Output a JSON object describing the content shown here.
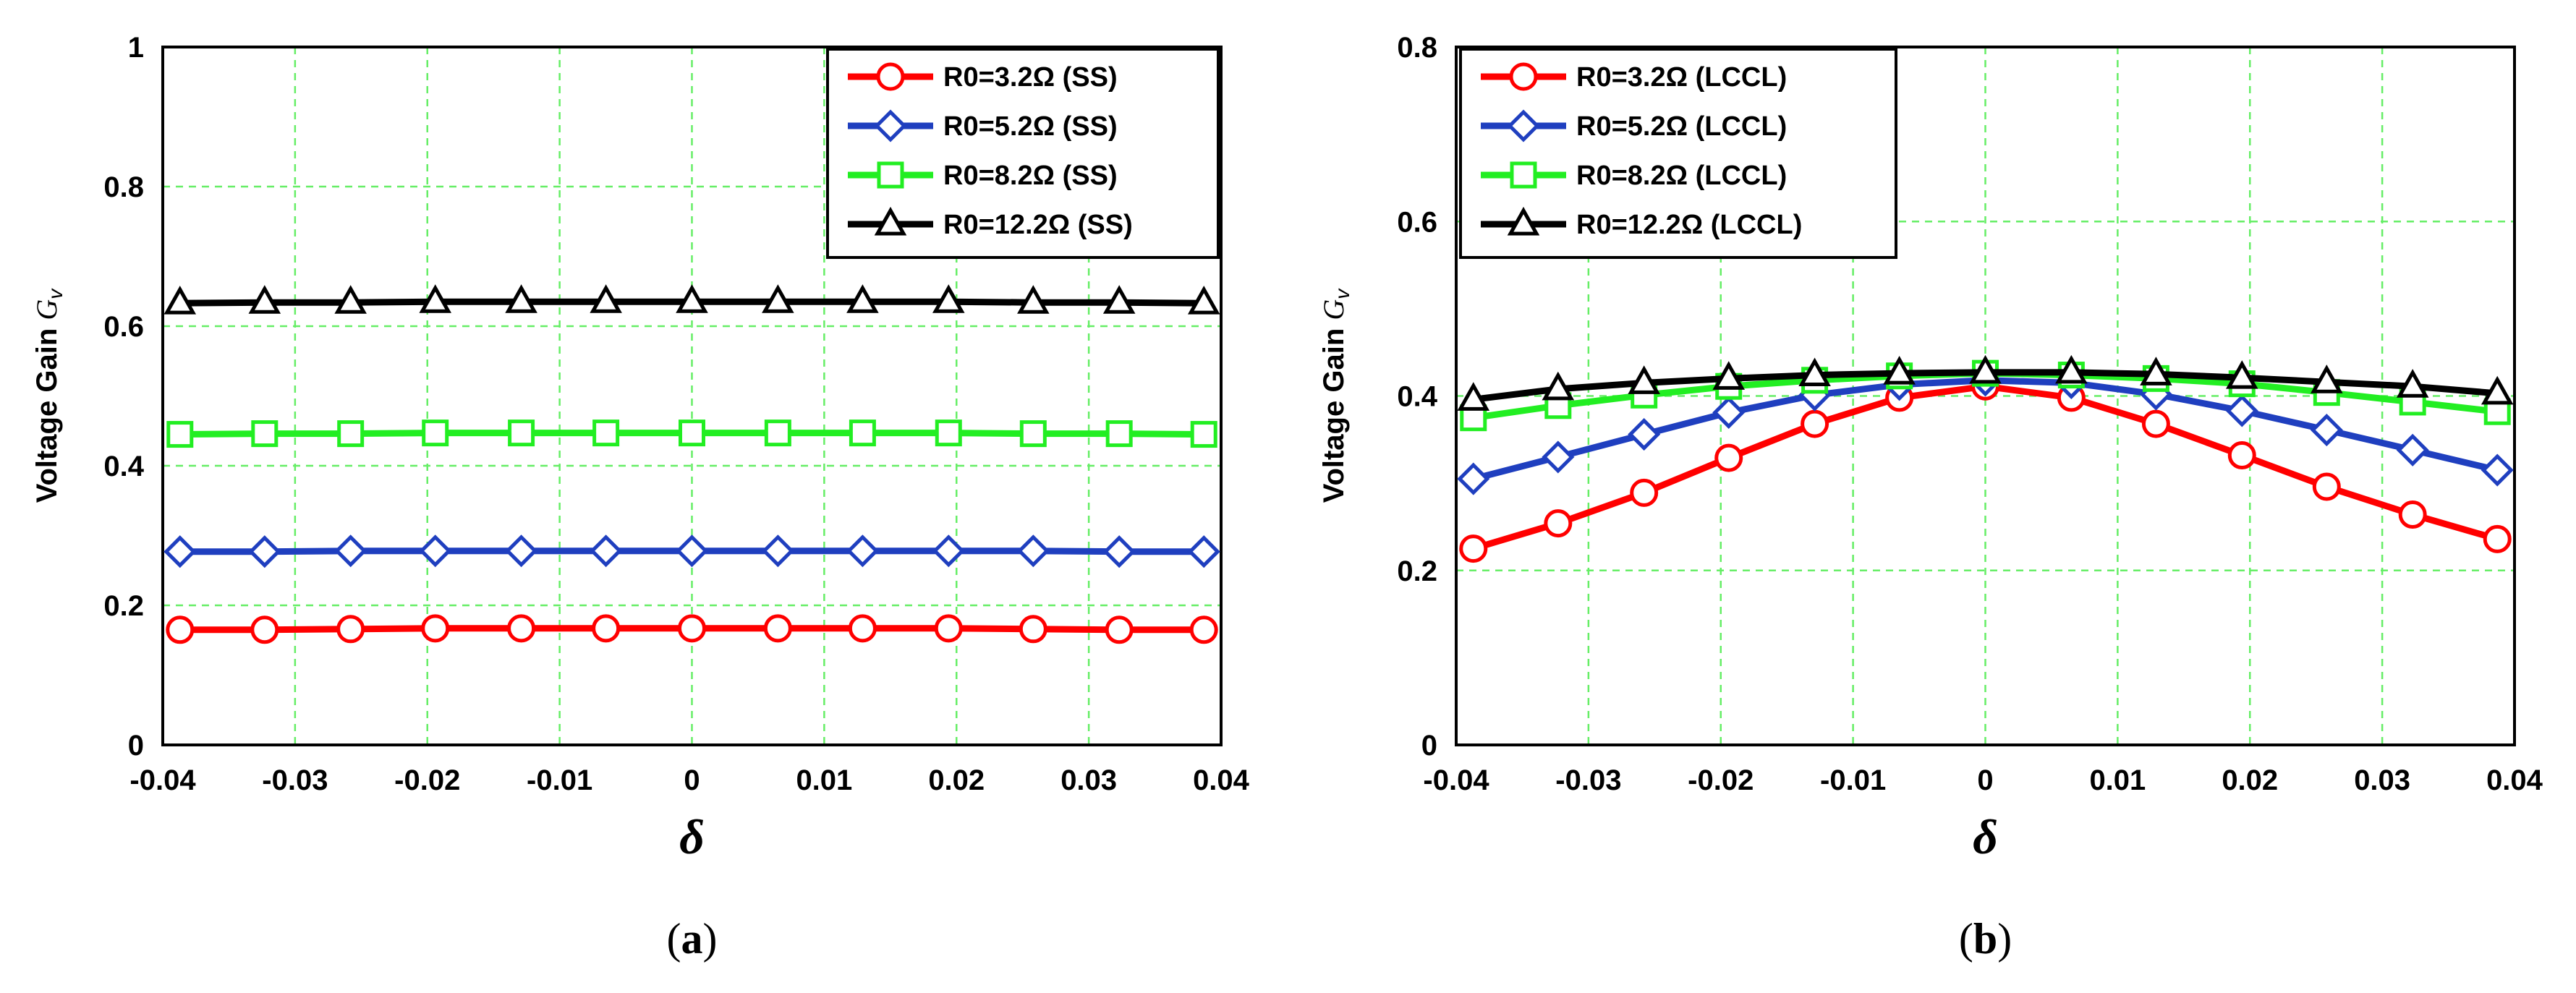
{
  "chart_data": [
    {
      "panel": "a",
      "type": "line",
      "title": "",
      "xlabel": "δ",
      "ylabel": "Voltage Gain ",
      "ylabel_sym": "G",
      "ylabel_sub": "v",
      "xlim": [
        -0.04,
        0.04
      ],
      "ylim": [
        0,
        1
      ],
      "xticks": [
        "-0.04",
        "-0.03",
        "-0.02",
        "-0.01",
        "0",
        "0.01",
        "0.02",
        "0.03",
        "0.04"
      ],
      "yticks": [
        "0",
        "0.2",
        "0.4",
        "0.6",
        "0.8",
        "1"
      ],
      "ytick_values": [
        0,
        0.2,
        0.4,
        0.6,
        0.8,
        1
      ],
      "grid": true,
      "legend_position": "top-right",
      "x": [
        -0.0387,
        -0.0323,
        -0.0258,
        -0.0194,
        -0.0129,
        -0.0065,
        0,
        0.0065,
        0.0129,
        0.0194,
        0.0258,
        0.0323,
        0.0387
      ],
      "series": [
        {
          "name": "R0=3.2Ω (SS)",
          "color": "#ff0000",
          "marker": "circle",
          "values": [
            0.165,
            0.165,
            0.166,
            0.167,
            0.167,
            0.167,
            0.167,
            0.167,
            0.167,
            0.167,
            0.166,
            0.165,
            0.165
          ]
        },
        {
          "name": "R0=5.2Ω (SS)",
          "color": "#1f3fbf",
          "marker": "diamond",
          "values": [
            0.277,
            0.277,
            0.278,
            0.278,
            0.278,
            0.278,
            0.278,
            0.278,
            0.278,
            0.278,
            0.278,
            0.277,
            0.277
          ]
        },
        {
          "name": "R0=8.2Ω (SS)",
          "color": "#22ee22",
          "marker": "square",
          "values": [
            0.445,
            0.446,
            0.446,
            0.447,
            0.447,
            0.447,
            0.447,
            0.447,
            0.447,
            0.447,
            0.446,
            0.446,
            0.445
          ]
        },
        {
          "name": "R0=12.2Ω (SS)",
          "color": "#000000",
          "marker": "triangle",
          "values": [
            0.633,
            0.634,
            0.634,
            0.635,
            0.635,
            0.635,
            0.635,
            0.635,
            0.635,
            0.635,
            0.634,
            0.634,
            0.633
          ]
        }
      ]
    },
    {
      "panel": "b",
      "type": "line",
      "title": "",
      "xlabel": "δ",
      "ylabel": "Voltage Gain ",
      "ylabel_sym": "G",
      "ylabel_sub": "v",
      "xlim": [
        -0.04,
        0.04
      ],
      "ylim": [
        0,
        0.8
      ],
      "xticks": [
        "-0.04",
        "-0.03",
        "-0.02",
        "-0.01",
        "0",
        "0.01",
        "0.02",
        "0.03",
        "0.04"
      ],
      "yticks": [
        "0",
        "0.2",
        "0.4",
        "0.6",
        "0.8"
      ],
      "ytick_values": [
        0,
        0.2,
        0.4,
        0.6,
        0.8
      ],
      "grid": true,
      "legend_position": "top-left",
      "x": [
        -0.0387,
        -0.0323,
        -0.0258,
        -0.0194,
        -0.0129,
        -0.0065,
        0,
        0.0065,
        0.0129,
        0.0194,
        0.0258,
        0.0323,
        0.0387
      ],
      "series": [
        {
          "name": "R0=3.2Ω (LCCL)",
          "color": "#ff0000",
          "marker": "circle",
          "values": [
            0.225,
            0.254,
            0.289,
            0.329,
            0.368,
            0.398,
            0.411,
            0.398,
            0.368,
            0.332,
            0.296,
            0.264,
            0.236
          ]
        },
        {
          "name": "R0=5.2Ω (LCCL)",
          "color": "#1f3fbf",
          "marker": "diamond",
          "values": [
            0.305,
            0.33,
            0.356,
            0.381,
            0.401,
            0.413,
            0.418,
            0.415,
            0.402,
            0.383,
            0.361,
            0.338,
            0.315
          ]
        },
        {
          "name": "R0=8.2Ω (LCCL)",
          "color": "#22ee22",
          "marker": "square",
          "values": [
            0.375,
            0.389,
            0.401,
            0.411,
            0.418,
            0.423,
            0.426,
            0.424,
            0.42,
            0.414,
            0.404,
            0.393,
            0.382
          ]
        },
        {
          "name": "R0=12.2Ω (LCCL)",
          "color": "#000000",
          "marker": "triangle",
          "values": [
            0.396,
            0.408,
            0.415,
            0.42,
            0.424,
            0.426,
            0.427,
            0.427,
            0.425,
            0.421,
            0.416,
            0.411,
            0.403
          ]
        }
      ]
    }
  ],
  "panel_labels": [
    "(a)",
    "(b)"
  ]
}
